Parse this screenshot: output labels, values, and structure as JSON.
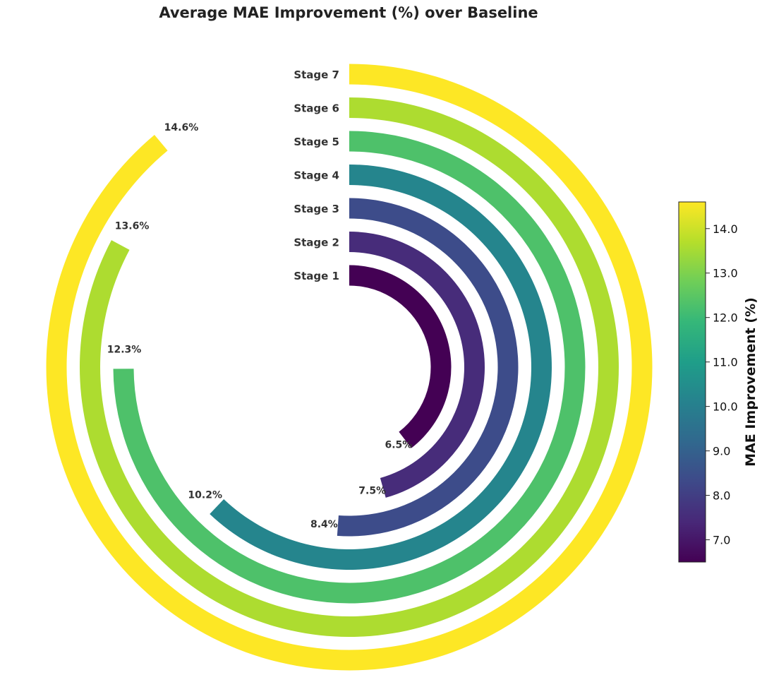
{
  "chart_data": {
    "type": "radial-bar",
    "title": "Average MAE Improvement (%) over Baseline",
    "categories": [
      "Stage 1",
      "Stage 2",
      "Stage 3",
      "Stage 4",
      "Stage 5",
      "Stage 6",
      "Stage 7"
    ],
    "values": [
      6.5,
      7.5,
      8.4,
      10.2,
      12.3,
      13.6,
      14.6
    ],
    "value_labels": [
      "6.5%",
      "7.5%",
      "8.4%",
      "10.2%",
      "12.3%",
      "13.6%",
      "14.6%"
    ],
    "colorscale": "viridis",
    "colorbar": {
      "label": "MAE Improvement (%)",
      "range": [
        6.5,
        14.6
      ],
      "ticks": [
        "7.0",
        "8.0",
        "9.0",
        "10.0",
        "11.0",
        "12.0",
        "13.0",
        "14.0"
      ]
    }
  },
  "colors": {
    "viridis": [
      "#440154",
      "#482878",
      "#3e4989",
      "#31688e",
      "#26828e",
      "#1f9e89",
      "#35b779",
      "#6ece58",
      "#b5de2b",
      "#fde725"
    ]
  }
}
